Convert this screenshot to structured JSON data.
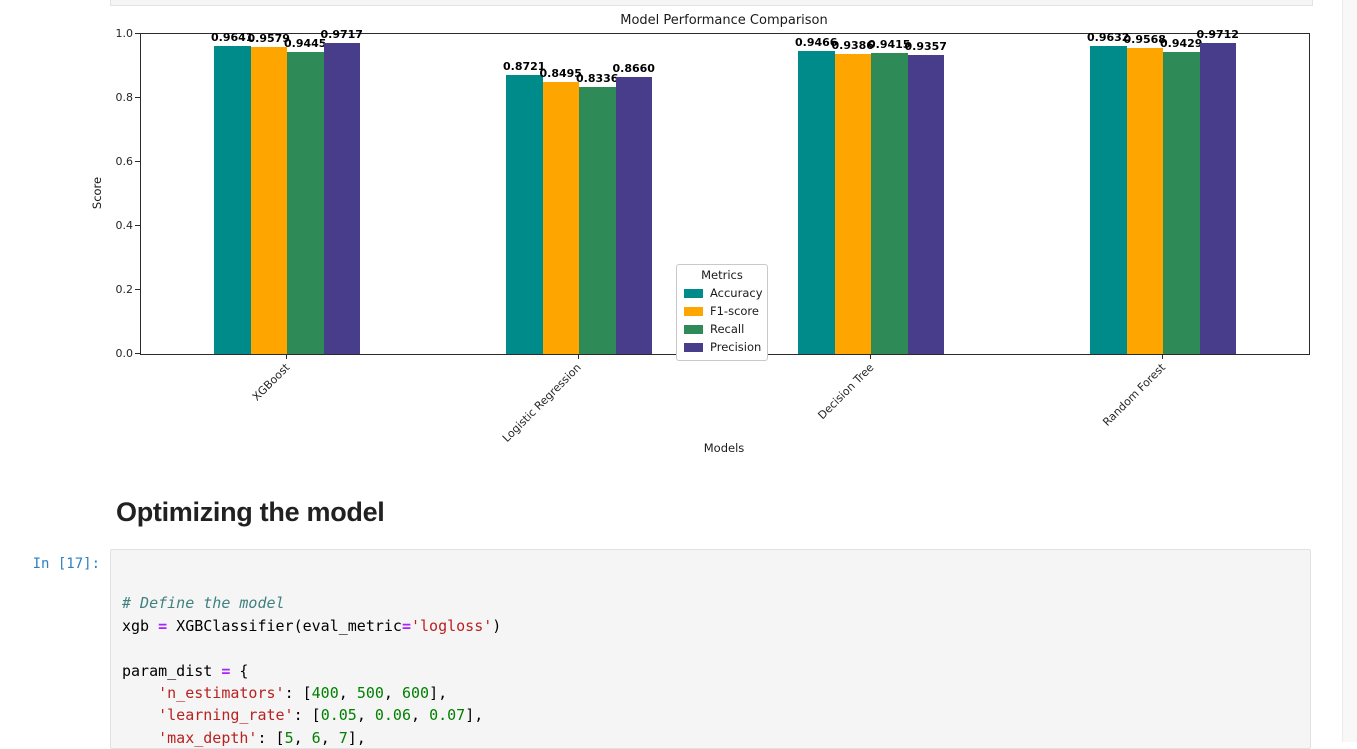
{
  "chart_data": {
    "type": "bar",
    "title": "Model Performance Comparison",
    "xlabel": "Models",
    "ylabel": "Score",
    "ylim": [
      0.0,
      1.0
    ],
    "yticks": [
      "0.0",
      "0.2",
      "0.4",
      "0.6",
      "0.8",
      "1.0"
    ],
    "grid": false,
    "legend_title": "Metrics",
    "legend_position": "center",
    "categories": [
      "XGBoost",
      "Logistic Regression",
      "Decision Tree",
      "Random Forest"
    ],
    "series": [
      {
        "name": "Accuracy",
        "color": "#008b8b",
        "values": [
          0.9641,
          0.8721,
          0.9466,
          0.9632
        ],
        "labels": [
          "0.9641",
          "0.8721",
          "0.9466",
          "0.9632"
        ]
      },
      {
        "name": "F1-score",
        "color": "#ffa500",
        "values": [
          0.9579,
          0.8495,
          0.9386,
          0.9568
        ],
        "labels": [
          "0.9579",
          "0.8495",
          "0.9386",
          "0.9568"
        ]
      },
      {
        "name": "Recall",
        "color": "#2e8b57",
        "values": [
          0.9445,
          0.8336,
          0.9415,
          0.9429
        ],
        "labels": [
          "0.9445",
          "0.8336",
          "0.9415",
          "0.9429"
        ]
      },
      {
        "name": "Precision",
        "color": "#483d8b",
        "values": [
          0.9717,
          0.866,
          0.9357,
          0.9712
        ],
        "labels": [
          "0.9717",
          "0.8660",
          "0.9357",
          "0.9712"
        ]
      }
    ]
  },
  "markdown": {
    "heading": "Optimizing the model"
  },
  "code_cell": {
    "prompt": "In [17]:",
    "lines": [
      [],
      [
        {
          "t": "# Define the model",
          "c": "com"
        }
      ],
      [
        {
          "t": "xgb ",
          "c": "p"
        },
        {
          "t": "=",
          "c": "op"
        },
        {
          "t": " XGBClassifier(eval_metric",
          "c": "p"
        },
        {
          "t": "=",
          "c": "op"
        },
        {
          "t": "'logloss'",
          "c": "str"
        },
        {
          "t": ")",
          "c": "p"
        }
      ],
      [],
      [
        {
          "t": "param_dist ",
          "c": "p"
        },
        {
          "t": "=",
          "c": "op"
        },
        {
          "t": " {",
          "c": "p"
        }
      ],
      [
        {
          "t": "    ",
          "c": "p"
        },
        {
          "t": "'n_estimators'",
          "c": "str"
        },
        {
          "t": ": [",
          "c": "p"
        },
        {
          "t": "400",
          "c": "num"
        },
        {
          "t": ", ",
          "c": "p"
        },
        {
          "t": "500",
          "c": "num"
        },
        {
          "t": ", ",
          "c": "p"
        },
        {
          "t": "600",
          "c": "num"
        },
        {
          "t": "],",
          "c": "p"
        }
      ],
      [
        {
          "t": "    ",
          "c": "p"
        },
        {
          "t": "'learning_rate'",
          "c": "str"
        },
        {
          "t": ": [",
          "c": "p"
        },
        {
          "t": "0.05",
          "c": "num"
        },
        {
          "t": ", ",
          "c": "p"
        },
        {
          "t": "0.06",
          "c": "num"
        },
        {
          "t": ", ",
          "c": "p"
        },
        {
          "t": "0.07",
          "c": "num"
        },
        {
          "t": "],",
          "c": "p"
        }
      ],
      [
        {
          "t": "    ",
          "c": "p"
        },
        {
          "t": "'max_depth'",
          "c": "str"
        },
        {
          "t": ": [",
          "c": "p"
        },
        {
          "t": "5",
          "c": "num"
        },
        {
          "t": ", ",
          "c": "p"
        },
        {
          "t": "6",
          "c": "num"
        },
        {
          "t": ", ",
          "c": "p"
        },
        {
          "t": "7",
          "c": "num"
        },
        {
          "t": "],",
          "c": "p"
        }
      ]
    ]
  }
}
